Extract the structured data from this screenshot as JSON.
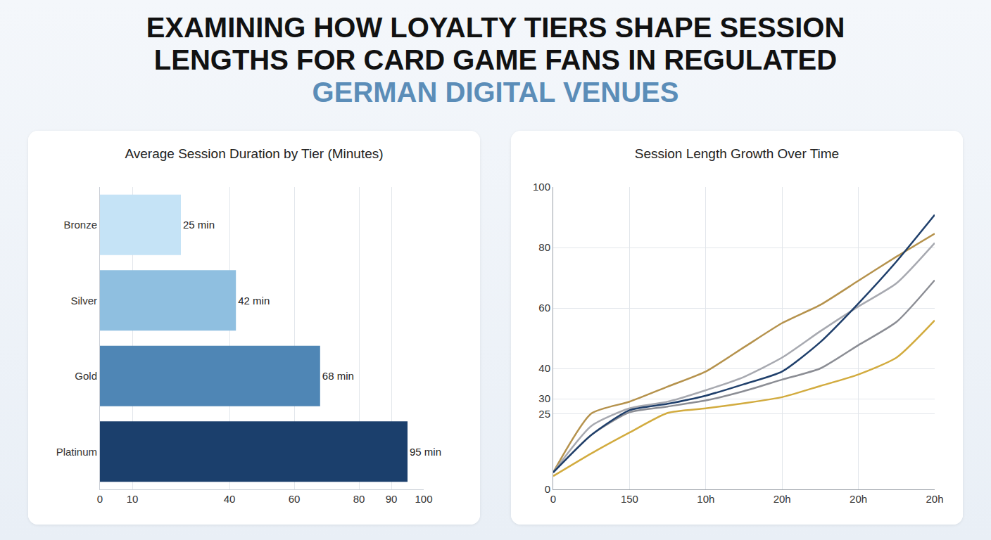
{
  "title": [
    "EXAMINING HOW LOYALTY TIERS SHAPE SESSION",
    "LENGTHS FOR CARD GAME FANS IN REGULATED",
    "GERMAN DIGITAL VENUES"
  ],
  "chart_data": [
    {
      "type": "bar",
      "title": "Average Session Duration by Tier (Minutes)",
      "orientation": "horizontal",
      "categories": [
        "Bronze",
        "Silver",
        "Gold",
        "Platinum"
      ],
      "values": [
        25,
        42,
        68,
        95
      ],
      "value_labels": [
        "25 min",
        "42 min",
        "68 min",
        "95 min"
      ],
      "data_labels": true,
      "colors": [
        "#c5e3f6",
        "#8fbfe0",
        "#4f86b5",
        "#1b3f6c"
      ],
      "xlim": [
        0,
        100
      ],
      "xticks": [
        0,
        10,
        40,
        60,
        80,
        90,
        100
      ],
      "grid": true
    },
    {
      "type": "line",
      "title": "Session Length Growth Over Time",
      "categories": [
        "0",
        null,
        "150",
        null,
        "10h",
        null,
        "20h",
        null,
        "20h",
        null,
        "20h"
      ],
      "series": [
        {
          "color": "#b5924c",
          "values": [
            5.6,
            25.1,
            29,
            34,
            39,
            47,
            55,
            61,
            69,
            77,
            84.6
          ]
        },
        {
          "color": "#a7a9b0",
          "values": [
            5.6,
            21,
            26.8,
            29,
            32.8,
            37.2,
            43.6,
            52.3,
            60.5,
            68.2,
            81.5
          ]
        },
        {
          "color": "#8b8d94",
          "values": [
            5.6,
            18,
            25.5,
            27.4,
            29.4,
            32.5,
            36.3,
            40,
            47.7,
            55.4,
            69.2
          ]
        },
        {
          "color": "#d2ab3e",
          "values": [
            4.4,
            11.9,
            18.8,
            25.3,
            26.8,
            28.5,
            30.5,
            34.2,
            38,
            43.6,
            55.9
          ]
        },
        {
          "color": "#1f3f6b",
          "values": [
            5.6,
            18,
            26.2,
            28.3,
            31,
            34.8,
            39,
            48.7,
            61.5,
            75.4,
            90.8
          ]
        }
      ],
      "ylim": [
        0,
        100
      ],
      "yticks": [
        0,
        25,
        30,
        40,
        60,
        80,
        100
      ],
      "grid": true
    }
  ]
}
